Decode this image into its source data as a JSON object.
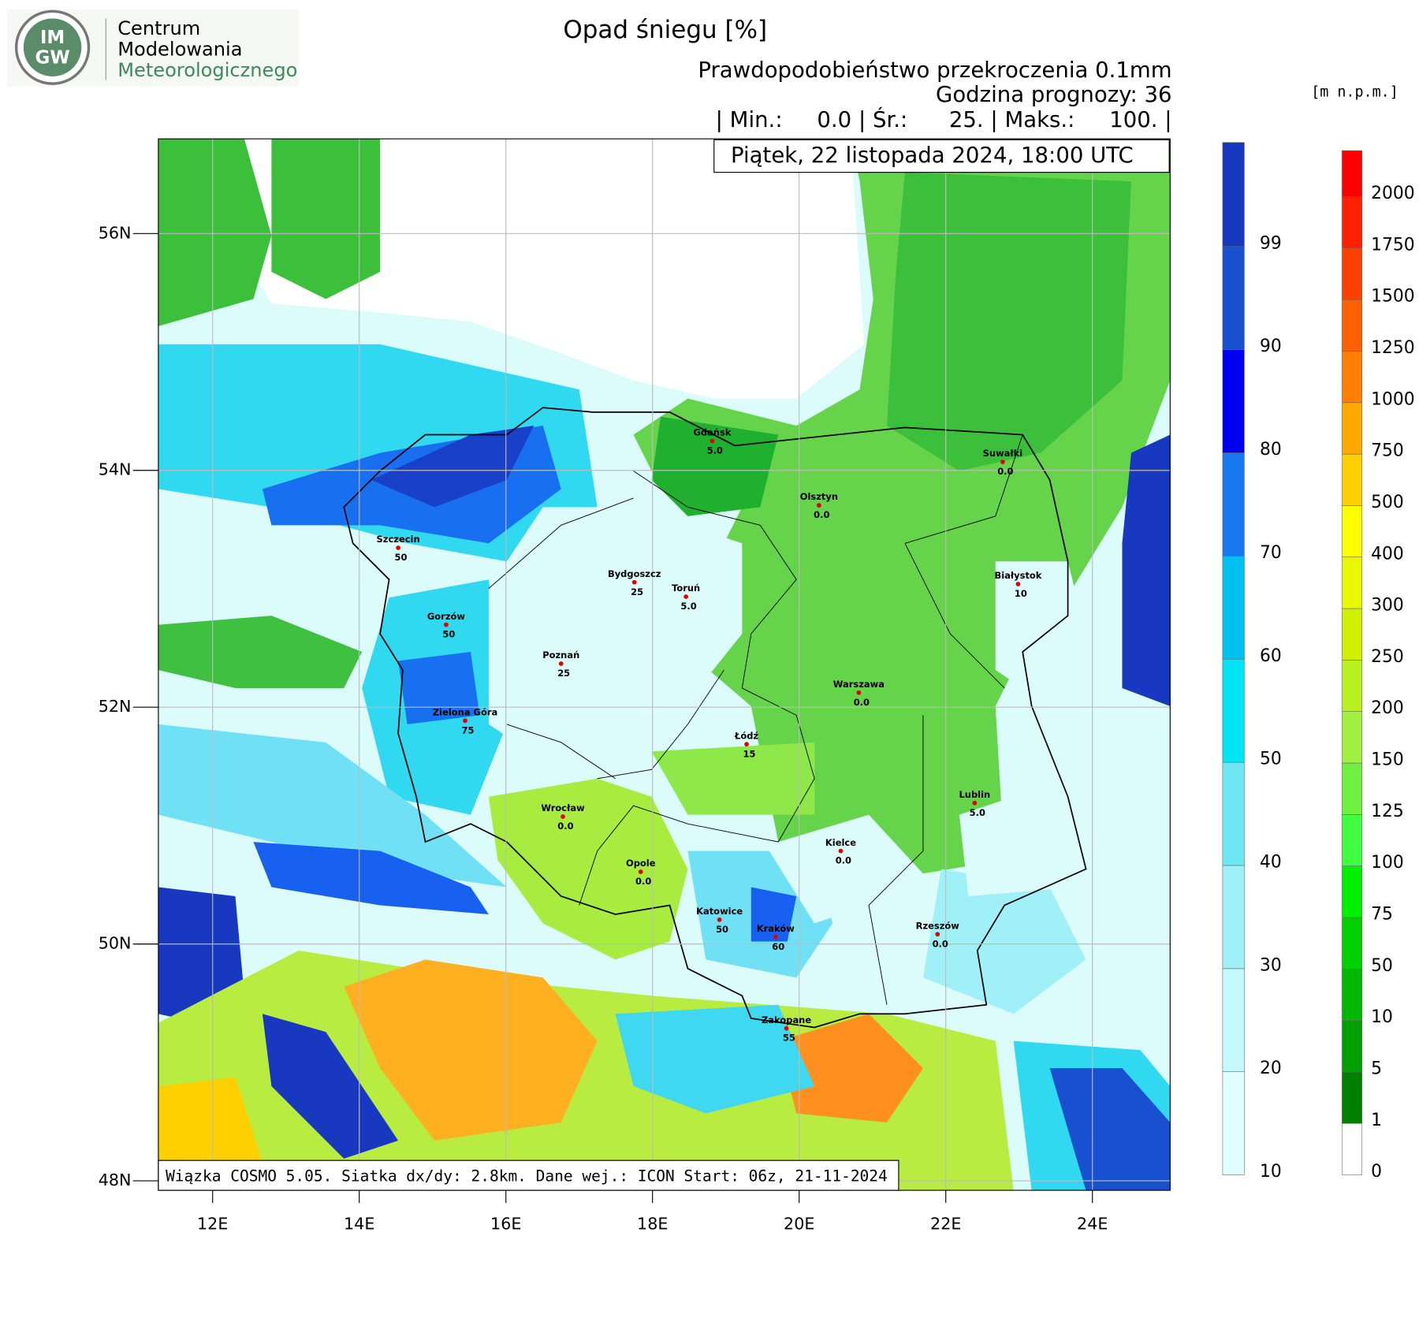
{
  "header": {
    "logo_top": "IM",
    "logo_bottom": "GW",
    "org_lines": [
      "Centrum",
      "Modelowania",
      "Meteorologicznego"
    ],
    "title": "Opad śniegu [%]",
    "subtitle_lines": [
      "Prawdopodobieństwo przekroczenia 0.1mm",
      "Godzina prognozy: 36",
      "| Min.:     0.0 | Śr.:      25. | Maks.:     100. |"
    ],
    "date": "Piątek, 22 listopada 2024, 18:00 UTC"
  },
  "footer": "Wiązka COSMO 5.05. Siatka dx/dy: 2.8km. Dane wej.: ICON Start: 06z, 21-11-2024",
  "map": {
    "xlim": [
      11.26,
      25.06
    ],
    "ylim": [
      47.92,
      56.8
    ],
    "xticks": [
      {
        "value": 12,
        "label": "12E"
      },
      {
        "value": 14,
        "label": "14E"
      },
      {
        "value": 16,
        "label": "16E"
      },
      {
        "value": 18,
        "label": "18E"
      },
      {
        "value": 20,
        "label": "20E"
      },
      {
        "value": 22,
        "label": "22E"
      },
      {
        "value": 24,
        "label": "24E"
      }
    ],
    "yticks": [
      {
        "value": 48,
        "label": "48N"
      },
      {
        "value": 50,
        "label": "50N"
      },
      {
        "value": 52,
        "label": "52N"
      },
      {
        "value": 54,
        "label": "54N"
      },
      {
        "value": 56,
        "label": "56N"
      }
    ]
  },
  "cities": {
    "names": [
      "Gdańsk",
      "Suwałki",
      "Olsztyn",
      "Szczecin",
      "Bydgoszcz",
      "Toruń",
      "Białystok",
      "Gorzów",
      "Poznań",
      "Warszawa",
      "Zielona Góra",
      "Łódź",
      "Lublin",
      "Wrocław",
      "Kielce",
      "Opole",
      "Katowice",
      "Kraków",
      "Rzeszów",
      "Zakopane"
    ],
    "values": [
      5,
      0,
      0,
      50,
      25,
      5,
      10,
      50,
      25,
      0,
      75,
      15,
      5,
      0,
      0,
      0,
      50,
      60,
      0,
      55
    ],
    "value_labels": [
      "5.0",
      "0.0",
      "0.0",
      "50",
      "25",
      "5.0",
      "10",
      "50",
      "25",
      "0.0",
      "75",
      "15",
      "5.0",
      "0.0",
      "0.0",
      "0.0",
      "50",
      "60",
      "0.0",
      "55"
    ]
  },
  "colorbars": [
    {
      "ticks": [
        10,
        20,
        30,
        40,
        50,
        60,
        70,
        80,
        90,
        99
      ],
      "colors": [
        "#e0ffff",
        "#c4f8fc",
        "#a0f0f8",
        "#70e8f4",
        "#00e4f4",
        "#00c0f0",
        "#1878f0",
        "#0000f0",
        "#1850d0",
        "#1838c0"
      ]
    },
    {
      "unit": "[m n.p.m.]",
      "ticks": [
        0,
        1,
        5,
        10,
        50,
        75,
        100,
        125,
        150,
        200,
        250,
        300,
        400,
        500,
        750,
        1000,
        1250,
        1500,
        1750,
        2000
      ],
      "colors": [
        "#ffffff",
        "#008000",
        "#00a000",
        "#00b800",
        "#00d000",
        "#00f000",
        "#40ff40",
        "#70f040",
        "#a0f040",
        "#b8f020",
        "#d0f000",
        "#e8f800",
        "#ffff00",
        "#ffd000",
        "#ffa800",
        "#ff8000",
        "#ff6000",
        "#ff4000",
        "#ff2000",
        "#ff0000"
      ]
    }
  ]
}
